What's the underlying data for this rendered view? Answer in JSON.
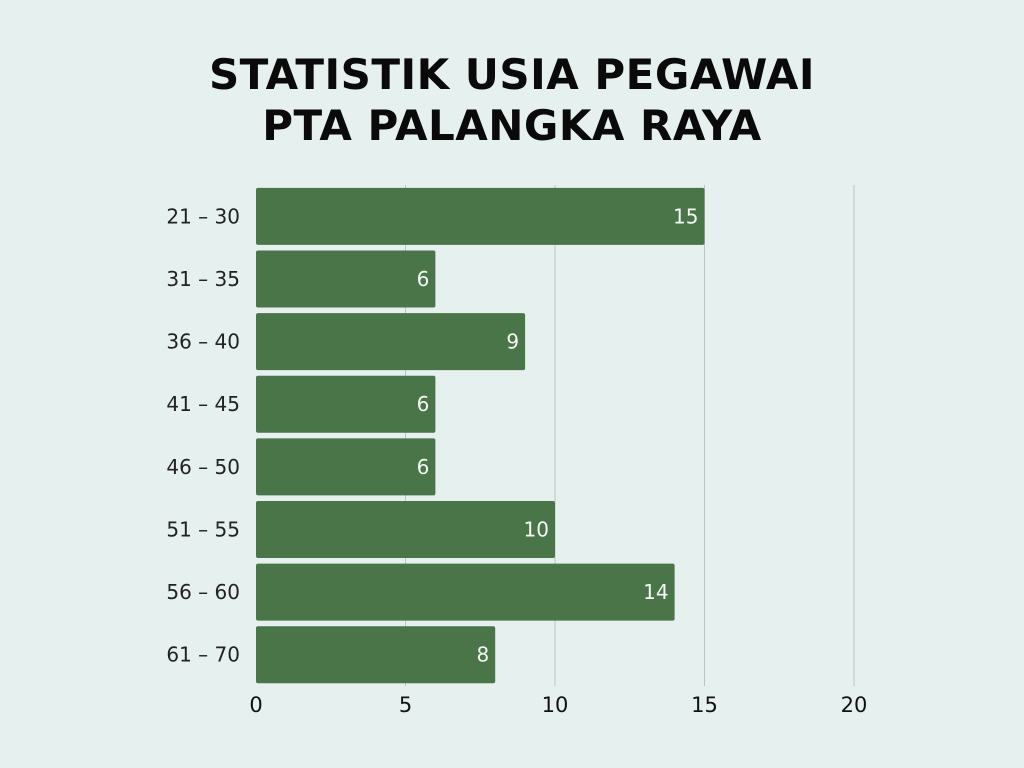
{
  "chart_data": {
    "type": "bar",
    "orientation": "horizontal",
    "title": "STATISTIK USIA PEGAWAI PTA PALANGKA RAYA",
    "title_lines": [
      "STATISTIK USIA PEGAWAI",
      "PTA PALANGKA RAYA"
    ],
    "categories": [
      "21 – 30",
      "31 – 35",
      "36 – 40",
      "41 – 45",
      "46 – 50",
      "51 – 55",
      "56 – 60",
      "61 – 70"
    ],
    "values": [
      15,
      6,
      9,
      6,
      6,
      10,
      14,
      8
    ],
    "xlim": [
      0,
      20
    ],
    "x_ticks": [
      0,
      5,
      10,
      15,
      20
    ],
    "xlabel": "",
    "ylabel": "",
    "grid": "vertical",
    "data_labels": true,
    "colors": {
      "background": "#e5f0ef",
      "bar": "#4a7549",
      "grid": "#b9c4c3",
      "value_label": "#f4f7f3"
    }
  }
}
